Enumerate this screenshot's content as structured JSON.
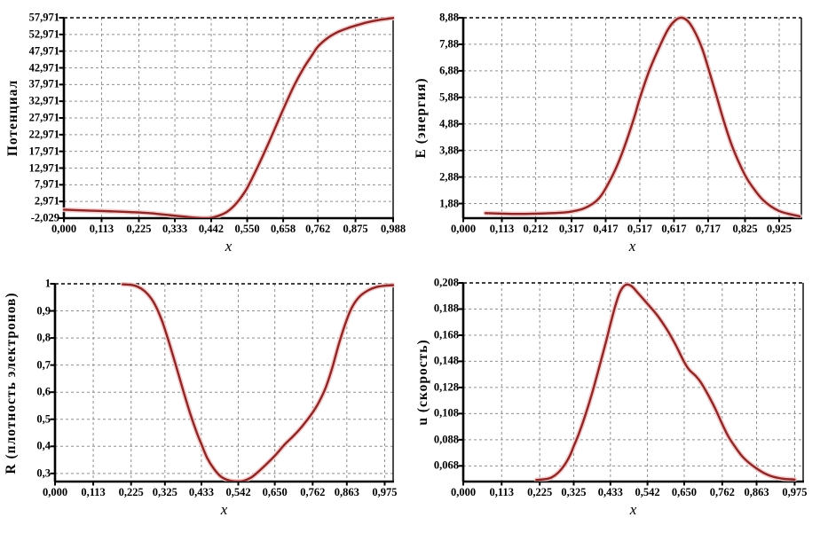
{
  "page": {
    "background": "#ffffff"
  },
  "styles": {
    "curve_color": "#8b2727",
    "glow_color": "#f5c6c6",
    "grid_color": "#8f8f8f",
    "axis_color": "#000000",
    "label_color": "#000000"
  },
  "chart_data": [
    {
      "id": "potential",
      "type": "line",
      "title": "",
      "ylabel": "Потенциал",
      "xlabel": "x",
      "grid": true,
      "legend": "none",
      "xlim": [
        0,
        0.988
      ],
      "ylim": [
        -2.029,
        57.971
      ],
      "x_tick_labels": [
        "0,000",
        "0,113",
        "0,225",
        "0,333",
        "0,442",
        "0,550",
        "0,658",
        "0,762",
        "0,875",
        "0,988"
      ],
      "y_tick_labels": [
        "57,971",
        "52,971",
        "47,971",
        "42,971",
        "37,971",
        "32,971",
        "27,971",
        "22,971",
        "17,971",
        "12,971",
        "7,971",
        "2,971",
        "-2,029"
      ],
      "series": [
        {
          "name": "potential-curve",
          "points": [
            [
              0,
              0.5
            ],
            [
              0.04,
              0.35
            ],
            [
              0.08,
              0.22
            ],
            [
              0.113,
              0.12
            ],
            [
              0.16,
              -0.05
            ],
            [
              0.2,
              -0.22
            ],
            [
              0.225,
              -0.32
            ],
            [
              0.26,
              -0.55
            ],
            [
              0.3,
              -0.95
            ],
            [
              0.333,
              -1.3
            ],
            [
              0.36,
              -1.55
            ],
            [
              0.39,
              -1.85
            ],
            [
              0.415,
              -2.0
            ],
            [
              0.435,
              -2.0
            ],
            [
              0.45,
              -1.75
            ],
            [
              0.47,
              -1.1
            ],
            [
              0.49,
              -0.1
            ],
            [
              0.51,
              1.6
            ],
            [
              0.53,
              4.0
            ],
            [
              0.55,
              7.0
            ],
            [
              0.58,
              13.0
            ],
            [
              0.61,
              19.5
            ],
            [
              0.634,
              25.0
            ],
            [
              0.658,
              30.5
            ],
            [
              0.69,
              37.5
            ],
            [
              0.72,
              43.0
            ],
            [
              0.745,
              46.8
            ],
            [
              0.762,
              49.3
            ],
            [
              0.79,
              51.8
            ],
            [
              0.82,
              53.6
            ],
            [
              0.85,
              54.8
            ],
            [
              0.875,
              55.6
            ],
            [
              0.91,
              56.6
            ],
            [
              0.945,
              57.3
            ],
            [
              0.988,
              57.9
            ]
          ]
        }
      ]
    },
    {
      "id": "energy",
      "type": "line",
      "title": "",
      "ylabel": "E (энергия)",
      "xlabel": "x",
      "grid": true,
      "legend": "none",
      "xlim": [
        0,
        0.99
      ],
      "ylim": [
        1.33,
        8.88
      ],
      "x_tick_labels": [
        "0,000",
        "0,113",
        "0,212",
        "0,317",
        "0,417",
        "0,517",
        "0,617",
        "0,717",
        "0,825",
        "0,925"
      ],
      "y_tick_labels": [
        "8,88",
        "7,88",
        "6,88",
        "5,88",
        "4,88",
        "3,88",
        "2,88",
        "1,88"
      ],
      "series": [
        {
          "name": "energy-curve",
          "points": [
            [
              0.065,
              1.52
            ],
            [
              0.113,
              1.5
            ],
            [
              0.16,
              1.49
            ],
            [
              0.212,
              1.5
            ],
            [
              0.26,
              1.52
            ],
            [
              0.3,
              1.55
            ],
            [
              0.317,
              1.58
            ],
            [
              0.35,
              1.68
            ],
            [
              0.38,
              1.88
            ],
            [
              0.4,
              2.12
            ],
            [
              0.417,
              2.45
            ],
            [
              0.445,
              3.15
            ],
            [
              0.47,
              3.95
            ],
            [
              0.5,
              5.1
            ],
            [
              0.517,
              5.85
            ],
            [
              0.545,
              6.9
            ],
            [
              0.575,
              7.8
            ],
            [
              0.6,
              8.45
            ],
            [
              0.62,
              8.77
            ],
            [
              0.64,
              8.88
            ],
            [
              0.66,
              8.72
            ],
            [
              0.68,
              8.3
            ],
            [
              0.7,
              7.7
            ],
            [
              0.717,
              7.0
            ],
            [
              0.74,
              6.0
            ],
            [
              0.765,
              4.9
            ],
            [
              0.79,
              3.95
            ],
            [
              0.825,
              2.95
            ],
            [
              0.85,
              2.45
            ],
            [
              0.875,
              2.05
            ],
            [
              0.9,
              1.78
            ],
            [
              0.925,
              1.6
            ],
            [
              0.95,
              1.5
            ],
            [
              0.985,
              1.4
            ]
          ]
        }
      ]
    },
    {
      "id": "electron-density",
      "type": "line",
      "title": "",
      "ylabel": "R (плотность электронов)",
      "xlabel": "x",
      "grid": true,
      "legend": "none",
      "xlim": [
        0,
        1.0
      ],
      "ylim": [
        0.27,
        1.0
      ],
      "x_tick_labels": [
        "0,000",
        "0,113",
        "0,225",
        "0,325",
        "0,433",
        "0,542",
        "0,650",
        "0,762",
        "0,863",
        "0,975"
      ],
      "y_tick_labels": [
        "1",
        "0,9",
        "0,8",
        "0,7",
        "0,6",
        "0,5",
        "0,4",
        "0,3"
      ],
      "series": [
        {
          "name": "density-curve",
          "points": [
            [
              0.2,
              0.998
            ],
            [
              0.225,
              0.996
            ],
            [
              0.245,
              0.989
            ],
            [
              0.265,
              0.973
            ],
            [
              0.285,
              0.945
            ],
            [
              0.3,
              0.912
            ],
            [
              0.315,
              0.868
            ],
            [
              0.325,
              0.832
            ],
            [
              0.34,
              0.772
            ],
            [
              0.36,
              0.688
            ],
            [
              0.38,
              0.602
            ],
            [
              0.4,
              0.52
            ],
            [
              0.42,
              0.448
            ],
            [
              0.433,
              0.408
            ],
            [
              0.45,
              0.357
            ],
            [
              0.47,
              0.317
            ],
            [
              0.49,
              0.289
            ],
            [
              0.51,
              0.276
            ],
            [
              0.53,
              0.271
            ],
            [
              0.555,
              0.272
            ],
            [
              0.58,
              0.285
            ],
            [
              0.6,
              0.305
            ],
            [
              0.62,
              0.328
            ],
            [
              0.65,
              0.365
            ],
            [
              0.68,
              0.408
            ],
            [
              0.7,
              0.432
            ],
            [
              0.72,
              0.458
            ],
            [
              0.74,
              0.488
            ],
            [
              0.762,
              0.525
            ],
            [
              0.78,
              0.562
            ],
            [
              0.8,
              0.615
            ],
            [
              0.82,
              0.69
            ],
            [
              0.84,
              0.78
            ],
            [
              0.863,
              0.868
            ],
            [
              0.88,
              0.917
            ],
            [
              0.9,
              0.952
            ],
            [
              0.925,
              0.975
            ],
            [
              0.95,
              0.988
            ],
            [
              0.975,
              0.993
            ],
            [
              1.0,
              0.995
            ]
          ]
        }
      ]
    },
    {
      "id": "velocity",
      "type": "line",
      "title": "",
      "ylabel": "u (скорость)",
      "xlabel": "x",
      "grid": true,
      "legend": "none",
      "xlim": [
        0,
        1.0
      ],
      "ylim": [
        0.056,
        0.208
      ],
      "x_tick_labels": [
        "0,000",
        "0,113",
        "0,225",
        "0,325",
        "0,433",
        "0,542",
        "0,650",
        "0,762",
        "0,863",
        "0,975"
      ],
      "y_tick_labels": [
        "0,208",
        "0,188",
        "0,168",
        "0,148",
        "0,128",
        "0,108",
        "0,088",
        "0,068"
      ],
      "series": [
        {
          "name": "velocity-curve",
          "points": [
            [
              0.215,
              0.0572
            ],
            [
              0.24,
              0.0578
            ],
            [
              0.26,
              0.0592
            ],
            [
              0.28,
              0.063
            ],
            [
              0.3,
              0.0695
            ],
            [
              0.315,
              0.0765
            ],
            [
              0.325,
              0.083
            ],
            [
              0.34,
              0.0925
            ],
            [
              0.36,
              0.1075
            ],
            [
              0.38,
              0.1245
            ],
            [
              0.4,
              0.1435
            ],
            [
              0.42,
              0.163
            ],
            [
              0.433,
              0.1765
            ],
            [
              0.448,
              0.191
            ],
            [
              0.462,
              0.2015
            ],
            [
              0.478,
              0.2065
            ],
            [
              0.495,
              0.2055
            ],
            [
              0.515,
              0.2
            ],
            [
              0.542,
              0.192
            ],
            [
              0.57,
              0.1835
            ],
            [
              0.6,
              0.172
            ],
            [
              0.625,
              0.1605
            ],
            [
              0.65,
              0.1475
            ],
            [
              0.665,
              0.1415
            ],
            [
              0.685,
              0.1365
            ],
            [
              0.7,
              0.1315
            ],
            [
              0.72,
              0.1225
            ],
            [
              0.74,
              0.1125
            ],
            [
              0.762,
              0.1
            ],
            [
              0.78,
              0.0905
            ],
            [
              0.8,
              0.0825
            ],
            [
              0.82,
              0.0755
            ],
            [
              0.84,
              0.0705
            ],
            [
              0.863,
              0.066
            ],
            [
              0.885,
              0.0625
            ],
            [
              0.91,
              0.0598
            ],
            [
              0.94,
              0.0582
            ],
            [
              0.975,
              0.0575
            ]
          ]
        }
      ]
    }
  ]
}
